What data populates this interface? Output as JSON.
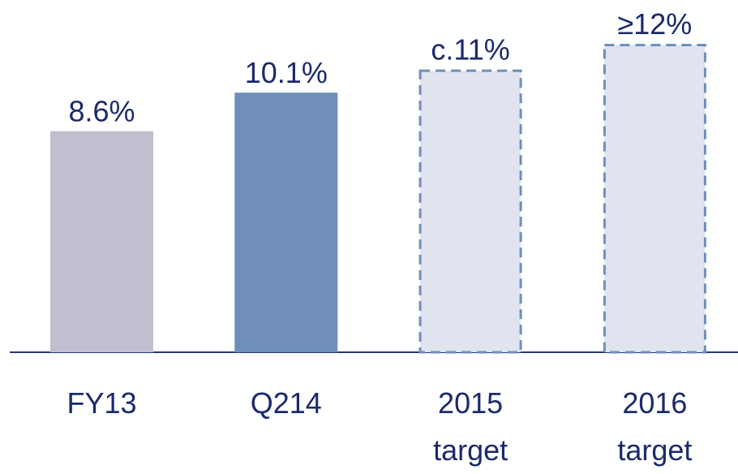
{
  "chart_data": {
    "type": "bar",
    "categories": [
      "FY13",
      "Q214",
      "2015 target",
      "2016 target"
    ],
    "values": [
      8.6,
      10.1,
      11,
      12
    ],
    "value_labels": [
      "8.6%",
      "10.1%",
      "c.11%",
      "≥12%"
    ],
    "colors": [
      "#c0bfd0",
      "#6f8fba",
      "#dfe4ee",
      "#dfe4ee"
    ],
    "dashed": [
      false,
      false,
      true,
      true
    ]
  }
}
